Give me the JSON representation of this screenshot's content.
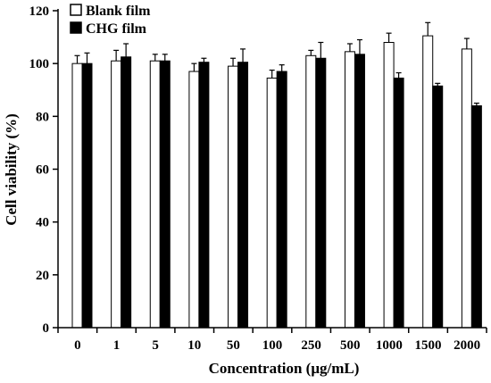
{
  "chart_data": {
    "type": "bar",
    "xlabel": "Concentration (μg/mL)",
    "ylabel": "Cell viability (%)",
    "ylim": [
      0,
      120
    ],
    "yticks": [
      0,
      20,
      40,
      60,
      80,
      100,
      120
    ],
    "categories": [
      "0",
      "1",
      "5",
      "10",
      "50",
      "100",
      "250",
      "500",
      "1000",
      "1500",
      "2000"
    ],
    "legend_position": "top-left",
    "grid": false,
    "series": [
      {
        "name": "Blank film",
        "fill": "#ffffff",
        "values": [
          100,
          101,
          101,
          97,
          99,
          94.5,
          103,
          104.5,
          108,
          110.5,
          105.5
        ],
        "errors": [
          3,
          4,
          2.5,
          3,
          3,
          3,
          2,
          3,
          3.5,
          5,
          4
        ]
      },
      {
        "name": "CHG film",
        "fill": "#000000",
        "values": [
          100,
          102.5,
          101,
          100.5,
          100.5,
          97,
          102,
          103.5,
          94.5,
          91.5,
          84
        ],
        "errors": [
          4,
          5,
          2.5,
          1.5,
          5,
          2.5,
          6,
          5.5,
          2,
          1,
          1
        ]
      }
    ]
  }
}
